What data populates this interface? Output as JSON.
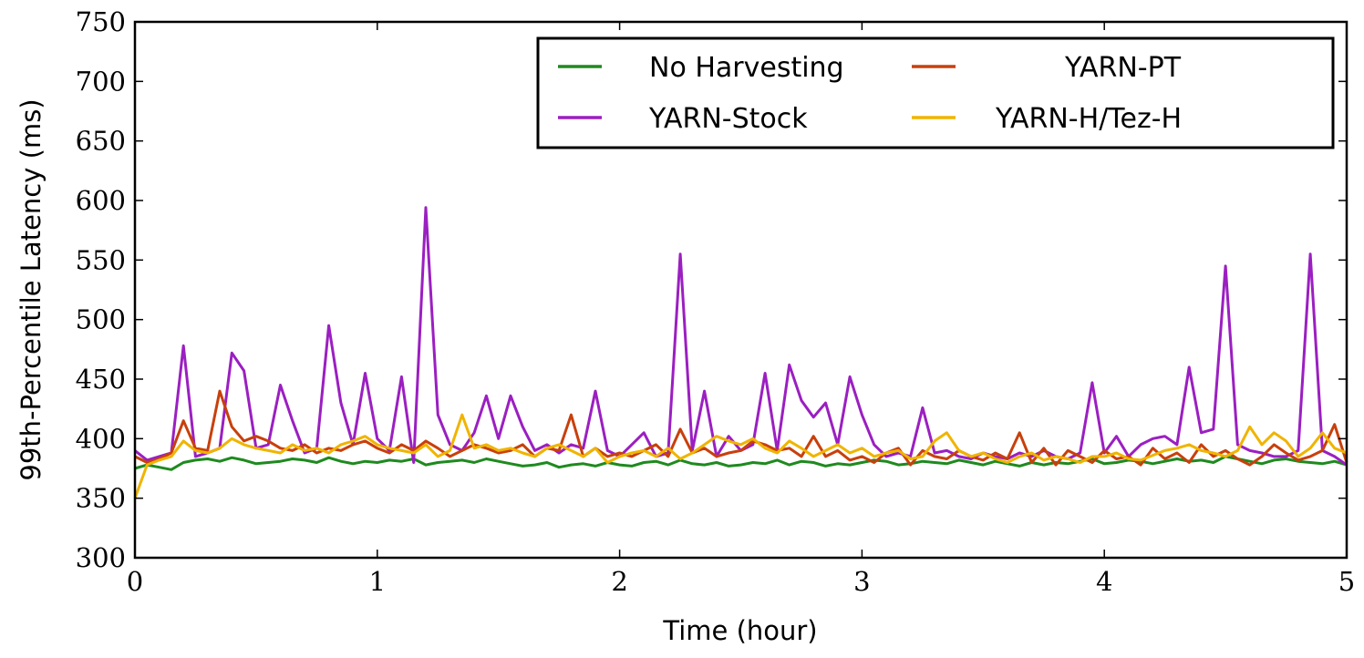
{
  "chart_data": {
    "type": "line",
    "xlabel": "Time (hour)",
    "ylabel": "99th-Percentile Latency (ms)",
    "xlim": [
      0,
      5
    ],
    "xticks": [
      0,
      1,
      2,
      3,
      4,
      5
    ],
    "ylim": [
      300,
      750
    ],
    "yticks": [
      300,
      350,
      400,
      450,
      500,
      550,
      600,
      650,
      700,
      750
    ],
    "legend": "upper right",
    "x": [
      0,
      0.05,
      0.1,
      0.15,
      0.2,
      0.25,
      0.3,
      0.35,
      0.4,
      0.45,
      0.5,
      0.55,
      0.6,
      0.65,
      0.7,
      0.75,
      0.8,
      0.85,
      0.9,
      0.95,
      1,
      1.05,
      1.1,
      1.15,
      1.2,
      1.25,
      1.3,
      1.35,
      1.4,
      1.45,
      1.5,
      1.55,
      1.6,
      1.65,
      1.7,
      1.75,
      1.8,
      1.85,
      1.9,
      1.95,
      2,
      2.05,
      2.1,
      2.15,
      2.2,
      2.25,
      2.3,
      2.35,
      2.4,
      2.45,
      2.5,
      2.55,
      2.6,
      2.65,
      2.7,
      2.75,
      2.8,
      2.85,
      2.9,
      2.95,
      3,
      3.05,
      3.1,
      3.15,
      3.2,
      3.25,
      3.3,
      3.35,
      3.4,
      3.45,
      3.5,
      3.55,
      3.6,
      3.65,
      3.7,
      3.75,
      3.8,
      3.85,
      3.9,
      3.95,
      4,
      4.05,
      4.1,
      4.15,
      4.2,
      4.25,
      4.3,
      4.35,
      4.4,
      4.45,
      4.5,
      4.55,
      4.6,
      4.65,
      4.7,
      4.75,
      4.8,
      4.85,
      4.9,
      4.95,
      5
    ],
    "series": [
      {
        "name": "No Harvesting",
        "color": "#1e8a1e",
        "values": [
          375,
          378,
          376,
          374,
          380,
          382,
          383,
          381,
          384,
          382,
          379,
          380,
          381,
          383,
          382,
          380,
          384,
          381,
          379,
          381,
          380,
          382,
          381,
          383,
          378,
          380,
          381,
          382,
          380,
          383,
          381,
          379,
          377,
          378,
          380,
          376,
          378,
          379,
          377,
          380,
          378,
          377,
          380,
          381,
          378,
          382,
          379,
          378,
          380,
          377,
          378,
          380,
          379,
          382,
          378,
          381,
          380,
          377,
          379,
          378,
          380,
          382,
          381,
          378,
          379,
          381,
          380,
          379,
          382,
          380,
          378,
          381,
          379,
          377,
          380,
          378,
          380,
          379,
          381,
          383,
          379,
          380,
          382,
          381,
          379,
          381,
          383,
          381,
          382,
          380,
          385,
          383,
          381,
          379,
          382,
          383,
          381,
          380,
          379,
          381,
          378
        ]
      },
      {
        "name": "YARN-Stock",
        "color": "#9b1fc1",
        "values": [
          390,
          382,
          385,
          388,
          478,
          385,
          388,
          392,
          472,
          457,
          392,
          395,
          445,
          415,
          388,
          392,
          495,
          430,
          395,
          455,
          400,
          390,
          452,
          380,
          594,
          420,
          395,
          390,
          405,
          436,
          400,
          436,
          410,
          390,
          395,
          388,
          395,
          392,
          440,
          390,
          385,
          395,
          405,
          385,
          388,
          555,
          390,
          440,
          385,
          402,
          390,
          395,
          455,
          390,
          462,
          432,
          418,
          430,
          395,
          452,
          420,
          395,
          385,
          388,
          385,
          426,
          388,
          390,
          385,
          383,
          388,
          385,
          383,
          388,
          385,
          390,
          385,
          383,
          388,
          447,
          388,
          402,
          385,
          395,
          400,
          402,
          395,
          460,
          405,
          408,
          545,
          395,
          390,
          388,
          385,
          385,
          390,
          555,
          390,
          385,
          378
        ]
      },
      {
        "name": "YARN-PT",
        "color": "#c8400c",
        "values": [
          385,
          380,
          383,
          388,
          415,
          392,
          390,
          440,
          410,
          398,
          402,
          398,
          392,
          390,
          395,
          388,
          392,
          390,
          395,
          398,
          392,
          388,
          395,
          390,
          398,
          392,
          385,
          390,
          395,
          392,
          388,
          390,
          395,
          385,
          392,
          390,
          420,
          385,
          392,
          385,
          388,
          385,
          390,
          395,
          385,
          408,
          388,
          392,
          385,
          388,
          390,
          398,
          395,
          390,
          392,
          385,
          402,
          385,
          390,
          382,
          385,
          380,
          388,
          392,
          378,
          390,
          385,
          383,
          390,
          385,
          382,
          388,
          383,
          405,
          380,
          392,
          378,
          390,
          385,
          380,
          390,
          383,
          385,
          378,
          392,
          383,
          388,
          380,
          395,
          385,
          390,
          383,
          378,
          385,
          395,
          388,
          382,
          385,
          390,
          412,
          380
        ]
      },
      {
        "name": "YARN-H/Tez-H",
        "color": "#f0b400",
        "values": [
          350,
          378,
          382,
          385,
          398,
          390,
          388,
          392,
          400,
          395,
          392,
          390,
          388,
          395,
          390,
          392,
          388,
          395,
          398,
          402,
          395,
          392,
          390,
          388,
          395,
          385,
          390,
          420,
          392,
          395,
          390,
          392,
          388,
          385,
          392,
          395,
          390,
          385,
          392,
          380,
          385,
          388,
          390,
          385,
          392,
          383,
          388,
          395,
          402,
          398,
          395,
          400,
          392,
          388,
          398,
          392,
          385,
          390,
          395,
          388,
          392,
          385,
          388,
          390,
          383,
          385,
          398,
          405,
          390,
          385,
          388,
          383,
          380,
          385,
          388,
          382,
          385,
          383,
          380,
          385,
          385,
          388,
          383,
          382,
          386,
          390,
          392,
          395,
          390,
          388,
          385,
          390,
          410,
          395,
          405,
          398,
          385,
          392,
          405,
          392,
          388
        ]
      }
    ]
  }
}
